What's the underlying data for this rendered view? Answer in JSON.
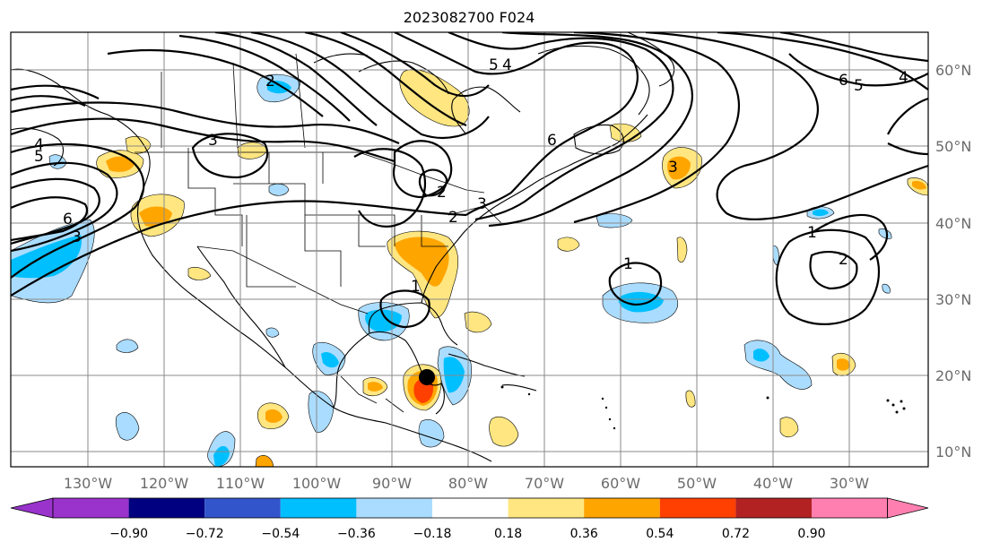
{
  "title": "2023082700 F024",
  "lon_labels": [
    "130°W",
    "120°W",
    "110°W",
    "100°W",
    "90°W",
    "80°W",
    "70°W",
    "60°W",
    "50°W",
    "40°W",
    "30°W"
  ],
  "lat_labels": [
    "60°N",
    "50°N",
    "40°N",
    "30°N",
    "20°N",
    "10°N"
  ],
  "colorbar": {
    "tick_labels": [
      "−0.90",
      "−0.72",
      "−0.54",
      "−0.36",
      "−0.18",
      "0.18",
      "0.36",
      "0.54",
      "0.72",
      "0.90"
    ],
    "colors": [
      "#9933cc",
      "#000080",
      "#3355cc",
      "#00bfff",
      "#aadcff",
      "#ffffff",
      "#ffe680",
      "#ffa500",
      "#ff4000",
      "#b22222",
      "#ff80b0"
    ]
  },
  "contour_labels": [
    "2",
    "3",
    "4",
    "5",
    "6",
    "1",
    "2",
    "3",
    "4",
    "5",
    "6",
    "3",
    "2",
    "1",
    "1",
    "2",
    "6",
    "5",
    "4",
    "3"
  ],
  "marker": "tropical-cyclone-center",
  "colors": {
    "grid": "#8a8a8a",
    "axis_labels": "#6b6b6b"
  }
}
